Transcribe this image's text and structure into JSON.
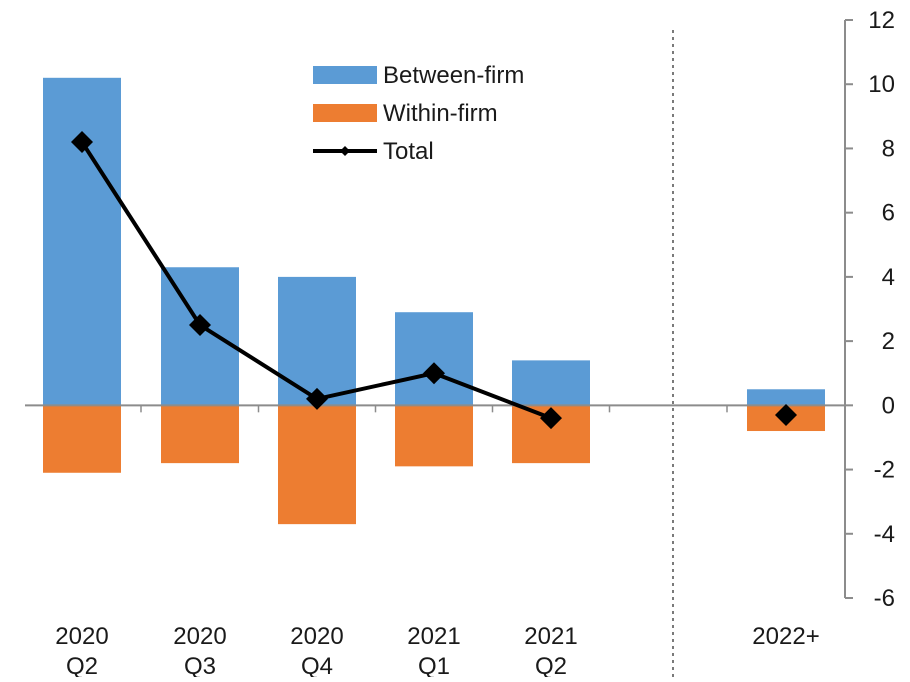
{
  "chart_data": {
    "type": "bar",
    "categories": [
      [
        "2020",
        "Q2"
      ],
      [
        "2020",
        "Q3"
      ],
      [
        "2020",
        "Q4"
      ],
      [
        "2021",
        "Q1"
      ],
      [
        "2021",
        "Q2"
      ],
      [],
      [
        "2022+"
      ]
    ],
    "series": [
      {
        "name": "Between-firm",
        "kind": "bar",
        "color": "#5b9bd5",
        "values": [
          10.2,
          4.3,
          4.0,
          2.9,
          1.4,
          null,
          0.5
        ]
      },
      {
        "name": "Within-firm",
        "kind": "bar",
        "color": "#ed7d31",
        "values": [
          -2.1,
          -1.8,
          -3.7,
          -1.9,
          -1.8,
          null,
          -0.8
        ]
      },
      {
        "name": "Total",
        "kind": "line",
        "color": "#000000",
        "values": [
          8.2,
          2.5,
          0.2,
          1.0,
          -0.4,
          null,
          -0.3
        ]
      }
    ],
    "ylim": [
      -6,
      12
    ],
    "yticks": [
      "12",
      "10",
      "8",
      "6",
      "4",
      "2",
      "0",
      "-2",
      "-4",
      "-6"
    ],
    "y_axis_side": "right",
    "separator_after_category": 5,
    "legend_position": "top-center",
    "grid": false
  }
}
